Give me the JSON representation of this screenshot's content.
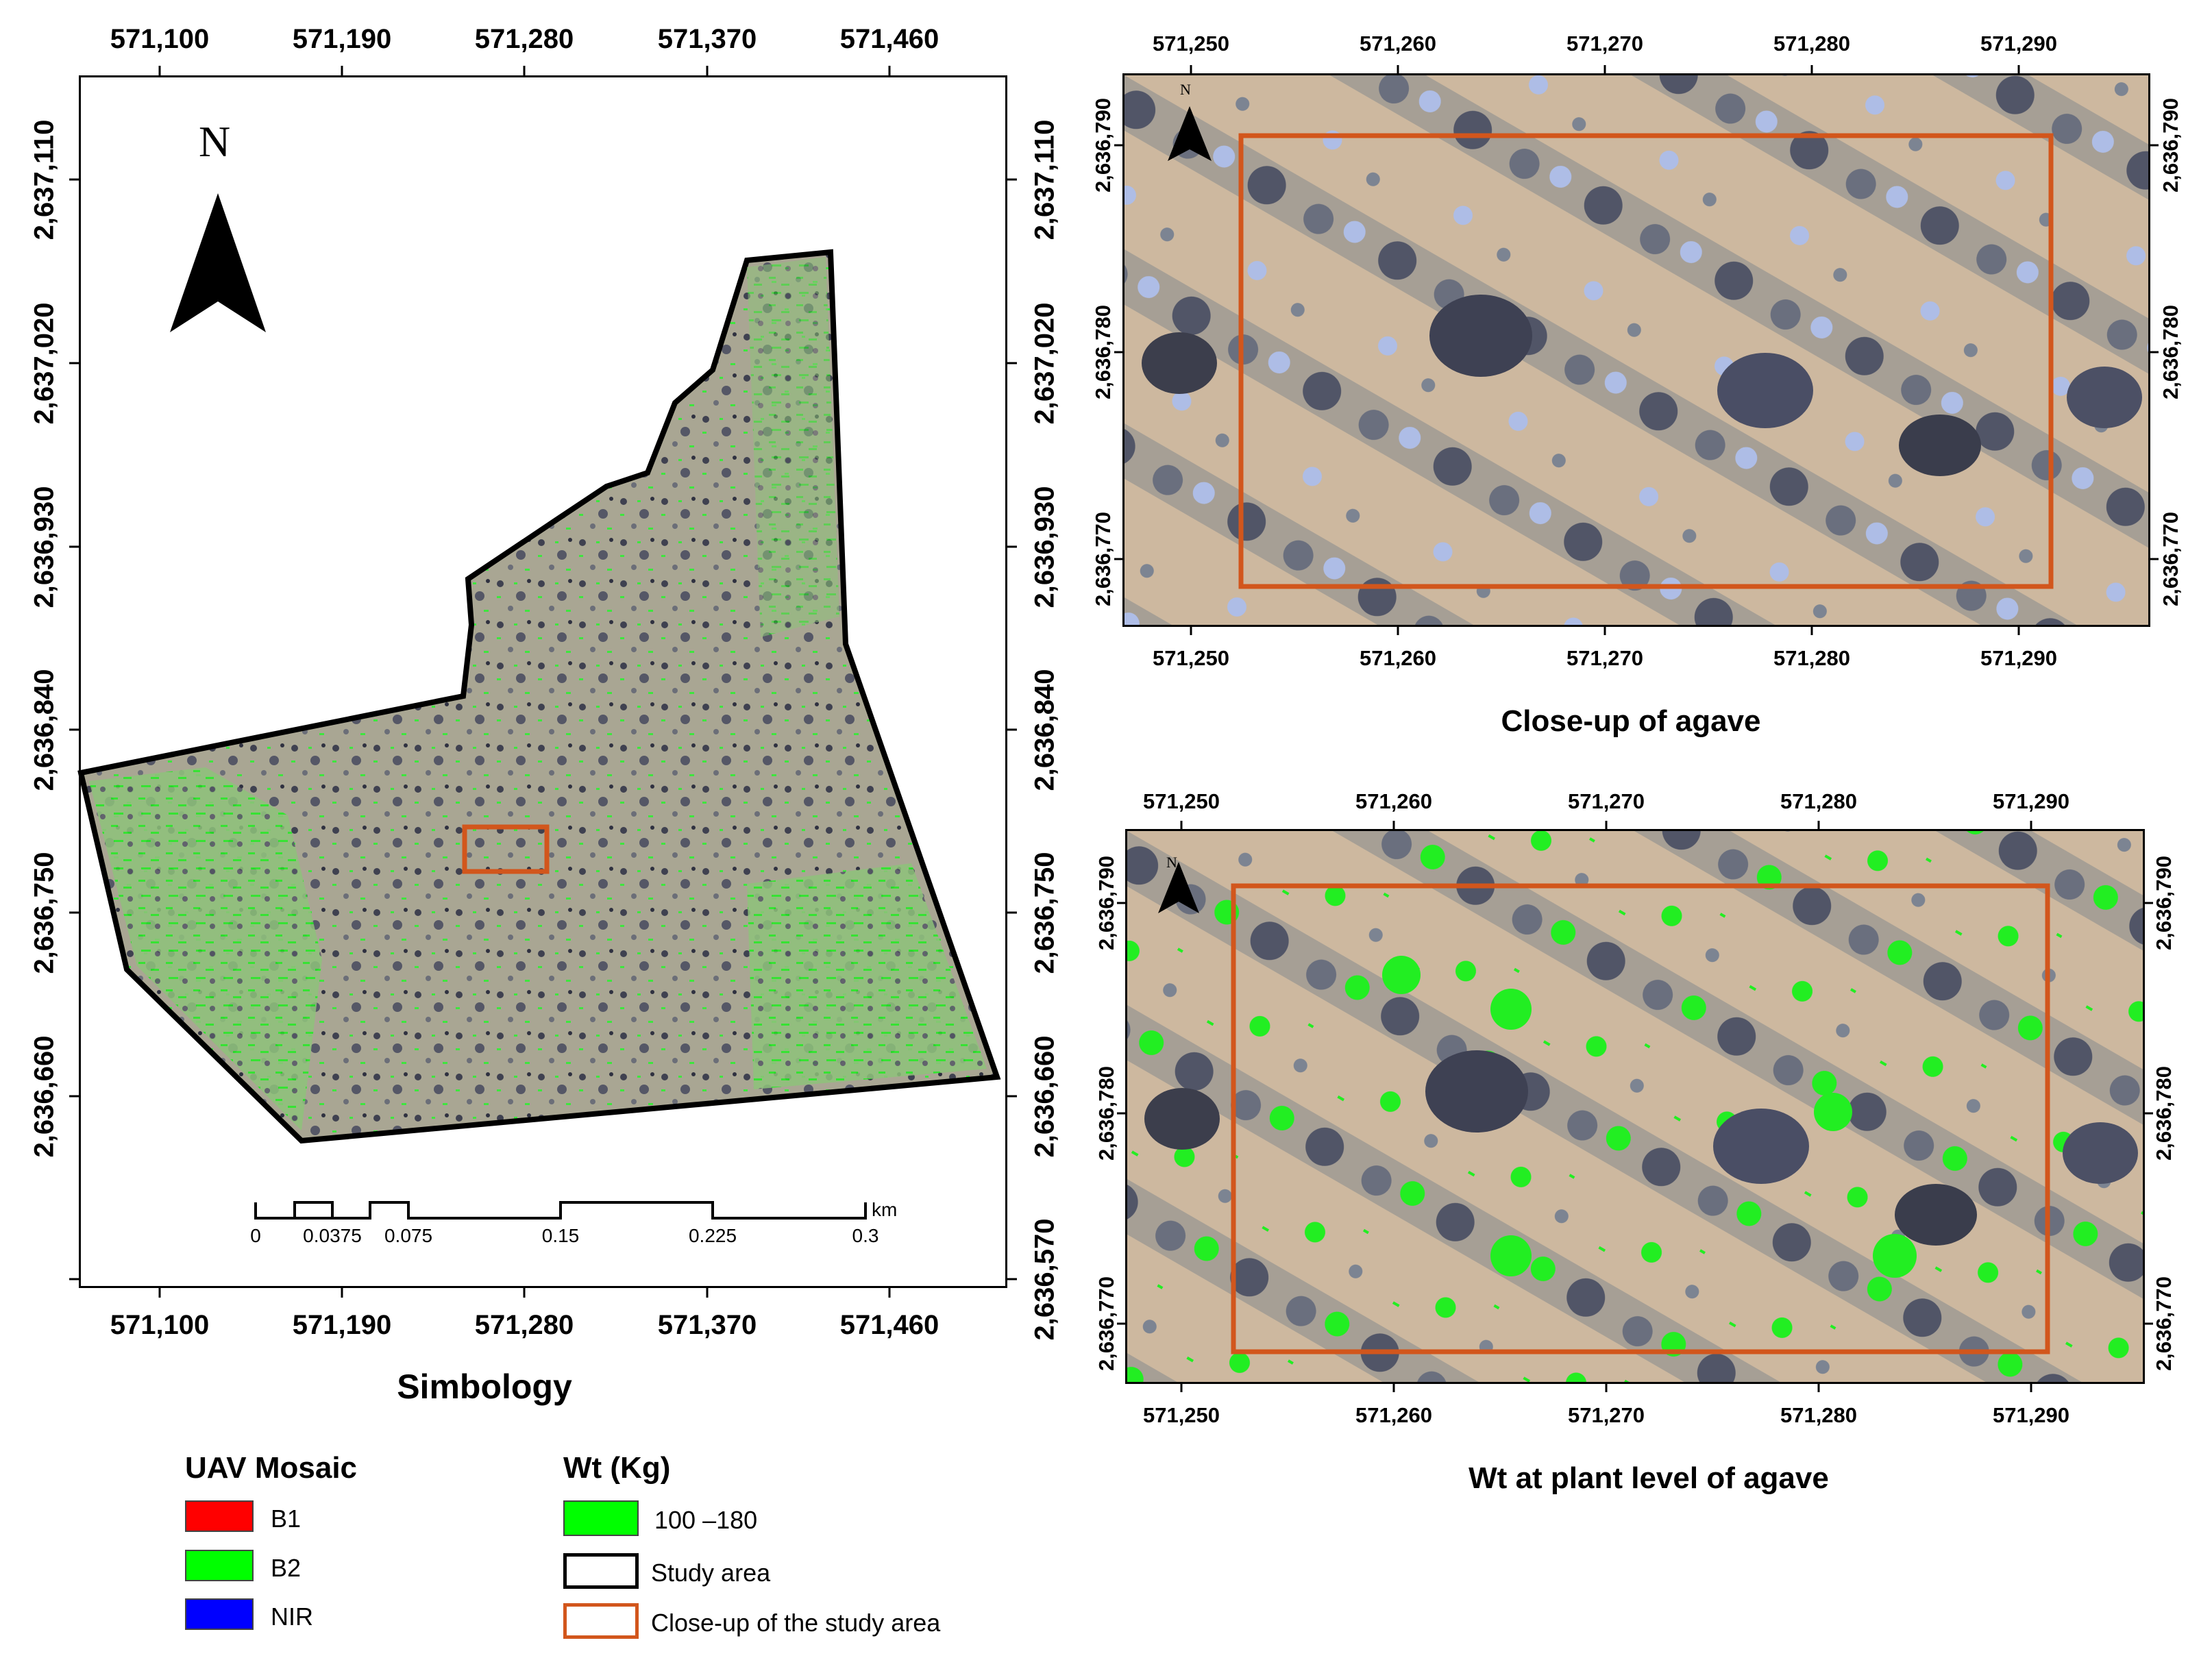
{
  "main_map": {
    "x_ticks": [
      "571,100",
      "571,190",
      "571,280",
      "571,370",
      "571,460"
    ],
    "y_ticks": [
      "2,637,110",
      "2,637,020",
      "2,636,930",
      "2,636,840",
      "2,636,750",
      "2,636,660",
      "2,636,570"
    ],
    "north_label": "N",
    "scale_bar": {
      "labels": [
        "0",
        "0.0375",
        "0.075",
        "0.15",
        "0.225",
        "0.3"
      ],
      "unit": "km"
    }
  },
  "top_right_map": {
    "x_ticks": [
      "571,250",
      "571,260",
      "571,270",
      "571,280",
      "571,290"
    ],
    "y_ticks": [
      "2,636,790",
      "2,636,780",
      "2,636,770"
    ],
    "north_label": "N",
    "caption": "Close-up of agave"
  },
  "bottom_right_map": {
    "x_ticks": [
      "571,250",
      "571,260",
      "571,270",
      "571,280",
      "571,290"
    ],
    "y_ticks": [
      "2,636,790",
      "2,636,780",
      "2,636,770"
    ],
    "north_label": "N",
    "caption": "Wt at plant level of agave"
  },
  "legend": {
    "heading": "Simbology",
    "uav_title": "UAV Mosaic",
    "uav_items": [
      {
        "label": "B1",
        "color": "#ff0000"
      },
      {
        "label": "B2",
        "color": "#00ff00"
      },
      {
        "label": "NIR",
        "color": "#0000ff"
      }
    ],
    "wt_title": "Wt (Kg)",
    "wt_items": [
      {
        "label": "100 –180",
        "fill": "#00ff00",
        "border": "#444444"
      },
      {
        "label": "Study area",
        "fill": "#ffffff",
        "border": "#000000"
      },
      {
        "label": "Close-up of the study area",
        "fill": "#ffffff",
        "border": "#d2561c"
      }
    ]
  },
  "colors": {
    "accent_orange": "#d2561c",
    "highlight_green": "#00ff00",
    "soil": "#c9b69c",
    "vegetation_dark": "#4a4e5e",
    "agave": "#a9b8e0"
  }
}
